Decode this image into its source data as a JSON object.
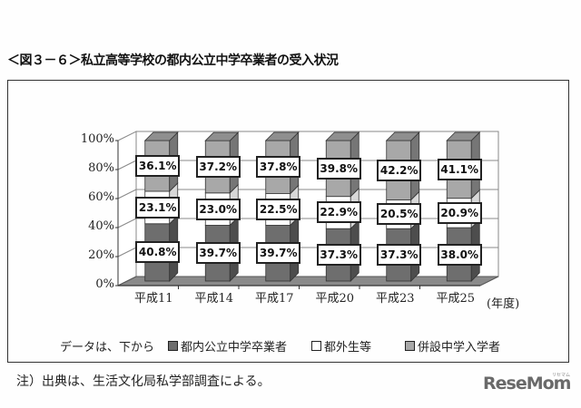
{
  "title": "＜図３－６＞私立高等学校の都内公立中学卒業者の受入状況",
  "chart_data": {
    "type": "bar",
    "stacked": true,
    "percent_stacked": true,
    "style": "3d-column",
    "title": "＜図３－６＞私立高等学校の都内公立中学卒業者の受入状況",
    "categories": [
      "平成11",
      "平成14",
      "平成17",
      "平成20",
      "平成23",
      "平成25"
    ],
    "xlabel": "(年度)",
    "ylabel": "",
    "ylim": [
      0,
      100
    ],
    "yticks": [
      "0%",
      "20%",
      "40%",
      "60%",
      "80%",
      "100%"
    ],
    "grid": true,
    "series": [
      {
        "name": "都内公立中学卒業者",
        "color": "#6e6e6e",
        "values": [
          40.8,
          39.7,
          39.7,
          37.3,
          37.3,
          38.0
        ]
      },
      {
        "name": "都外生等",
        "color": "#ffffff",
        "values": [
          23.1,
          23.0,
          22.5,
          22.9,
          20.5,
          20.9
        ]
      },
      {
        "name": "併設中学入学者",
        "color": "#a8a8a8",
        "values": [
          36.1,
          37.2,
          37.8,
          39.8,
          42.2,
          41.1
        ]
      }
    ],
    "data_labels": [
      [
        "40.8%",
        "39.7%",
        "39.7%",
        "37.3%",
        "37.3%",
        "38.0%"
      ],
      [
        "23.1%",
        "23.0%",
        "22.5%",
        "22.9%",
        "20.5%",
        "20.9%"
      ],
      [
        "36.1%",
        "37.2%",
        "37.8%",
        "39.8%",
        "42.2%",
        "41.1%"
      ]
    ],
    "legend_position": "bottom",
    "legend_prefix": "データは、下から"
  },
  "axis": {
    "y": [
      "0%",
      "20%",
      "40%",
      "60%",
      "80%",
      "100%"
    ],
    "x": [
      "平成11",
      "平成14",
      "平成17",
      "平成20",
      "平成23",
      "平成25"
    ],
    "unit": "(年度)"
  },
  "legend": {
    "prefix": "データは、下から",
    "items": [
      {
        "label": "都内公立中学卒業者",
        "color": "#6e6e6e"
      },
      {
        "label": "都外生等",
        "color": "#ffffff"
      },
      {
        "label": "併設中学入学者",
        "color": "#a8a8a8"
      }
    ]
  },
  "note": "注）出典は、生活文化局私学部調査による。",
  "logo": {
    "text": "ReseMom",
    "sub": "リセマム"
  }
}
